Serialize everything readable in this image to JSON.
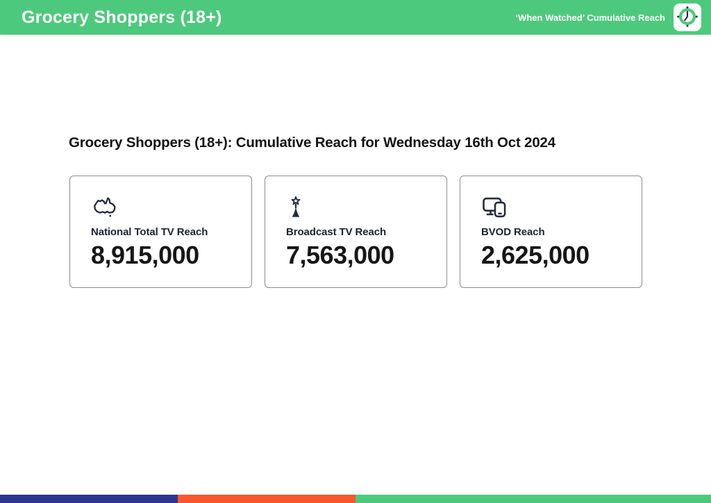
{
  "header": {
    "title": "Grocery Shoppers (18+)",
    "subtitle": "‘When Watched’ Cumulative Reach",
    "bg_color": "#4dc97d",
    "clock_icon": "clock-icon"
  },
  "main": {
    "heading": "Grocery Shoppers (18+): Cumulative Reach for Wednesday 16th Oct 2024",
    "cards": [
      {
        "icon": "australia-map-icon",
        "label": "National Total TV Reach",
        "value": "8,915,000"
      },
      {
        "icon": "broadcast-tower-icon",
        "label": "Broadcast TV Reach",
        "value": "7,563,000"
      },
      {
        "icon": "tv-and-phone-devices-icon",
        "label": "BVOD Reach",
        "value": "2,625,000"
      }
    ]
  },
  "footer": {
    "segments": [
      {
        "name": "navy-segment",
        "color": "#2d3790",
        "width_pct": 25
      },
      {
        "name": "orange-segment",
        "color": "#f85730",
        "width_pct": 25
      },
      {
        "name": "green-segment",
        "color": "#4dc97d",
        "width_pct": 50
      }
    ]
  },
  "colors": {
    "header_green": "#4dc97d",
    "icon_navy": "#242b3e",
    "card_border_gray": "#8c8c8c"
  }
}
